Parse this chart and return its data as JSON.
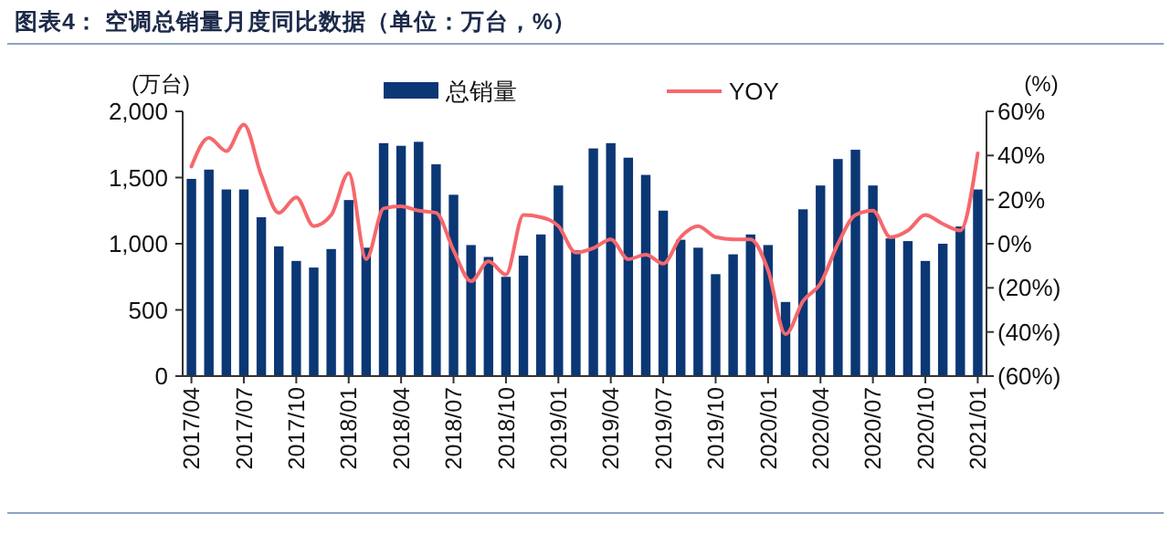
{
  "chart_data": {
    "type": "bar",
    "title": "图表4：  空调总销量月度同比数据（单位：万台，%）",
    "ylabel": "(万台)",
    "y2label": "(%)",
    "categories": [
      "2017/04",
      null,
      null,
      "2017/07",
      null,
      null,
      "2017/10",
      null,
      null,
      "2018/01",
      null,
      null,
      "2018/04",
      null,
      null,
      "2018/07",
      null,
      null,
      "2018/10",
      null,
      null,
      "2019/01",
      null,
      null,
      "2019/04",
      null,
      null,
      "2019/07",
      null,
      null,
      "2019/10",
      null,
      null,
      "2020/01",
      null,
      null,
      "2020/04",
      null,
      null,
      "2020/07",
      null,
      null,
      "2020/10",
      null,
      null,
      "2021/01"
    ],
    "series": [
      {
        "name": "总销量",
        "color": "#0b3775",
        "values": [
          1490,
          1560,
          1410,
          1410,
          1200,
          980,
          870,
          820,
          960,
          1330,
          970,
          1760,
          1740,
          1770,
          1600,
          1370,
          990,
          900,
          750,
          910,
          1070,
          1440,
          950,
          1720,
          1760,
          1650,
          1520,
          1250,
          1030,
          970,
          770,
          920,
          1070,
          990,
          560,
          1260,
          1440,
          1640,
          1710,
          1440,
          1040,
          1020,
          870,
          1000,
          1130,
          1410
        ]
      },
      {
        "name": "YOY",
        "type": "line",
        "axis": "y2",
        "color": "#f5686c",
        "values": [
          35,
          48,
          42,
          54,
          31,
          14,
          21,
          8,
          13,
          32,
          -7,
          16,
          17,
          15,
          14,
          -3,
          -17,
          -8,
          -14,
          13,
          12,
          8,
          -4,
          -2,
          2,
          -7,
          -5,
          -9,
          3,
          8,
          3,
          2,
          2,
          -12,
          -41,
          -26,
          -18,
          0,
          13,
          15,
          3,
          6,
          13,
          9,
          6,
          41
        ]
      }
    ],
    "ylim": [
      0,
      2000
    ],
    "yticks": [
      0,
      500,
      {
        "value": 1000,
        "label": "1,000"
      },
      {
        "value": 1500,
        "label": "1,500"
      },
      {
        "value": 2000,
        "label": "2,000"
      }
    ],
    "y2lim": [
      -60,
      60
    ],
    "y2ticks": [
      {
        "value": -60,
        "label": "(60%)"
      },
      {
        "value": -40,
        "label": "(40%)"
      },
      {
        "value": -20,
        "label": "(20%)"
      },
      {
        "value": 0,
        "label": "0%"
      },
      {
        "value": 20,
        "label": "20%"
      },
      {
        "value": 40,
        "label": "40%"
      },
      {
        "value": 60,
        "label": "60%"
      }
    ],
    "legend": "top",
    "grid": false
  }
}
